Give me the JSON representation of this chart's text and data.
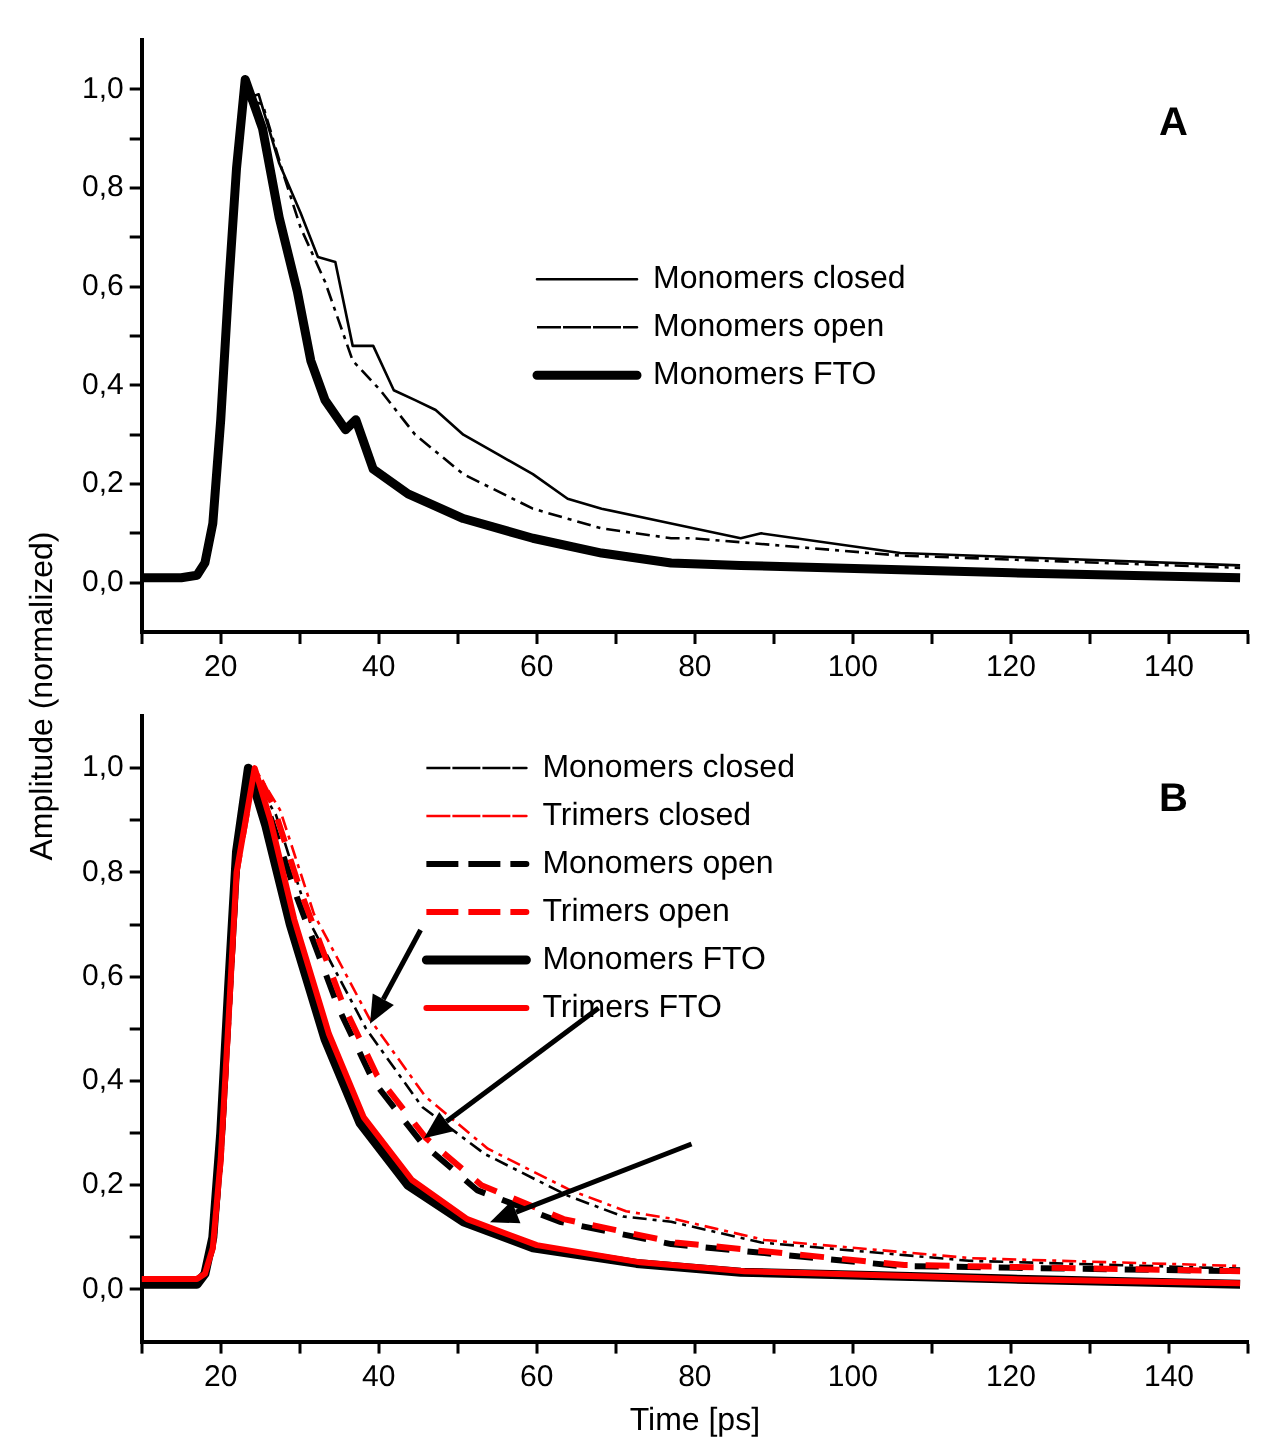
{
  "chart_data": [
    {
      "type": "line",
      "title": "A",
      "ylabel": "Amplitude (normalized)",
      "xlim": [
        10,
        150
      ],
      "ylim": [
        -0.1,
        1.1
      ],
      "xticks": [
        {
          "value": 10,
          "label": null
        },
        20,
        {
          "value": 30,
          "label": null
        },
        40,
        {
          "value": 50,
          "label": null
        },
        60,
        {
          "value": 70,
          "label": null
        },
        80,
        {
          "value": 90,
          "label": null
        },
        100,
        {
          "value": 110,
          "label": null
        },
        120,
        {
          "value": 130,
          "label": null
        },
        140,
        {
          "value": 150,
          "label": null
        }
      ],
      "yticks": [
        {
          "value": 0,
          "label": "0,0"
        },
        {
          "value": 0.1,
          "label": null
        },
        {
          "value": 0.2,
          "label": "0,2"
        },
        {
          "value": 0.3,
          "label": null
        },
        {
          "value": 0.4,
          "label": "0,4"
        },
        {
          "value": 0.5,
          "label": null
        },
        {
          "value": 0.6,
          "label": "0,6"
        },
        {
          "value": 0.7,
          "label": null
        },
        {
          "value": 0.8,
          "label": "0,8"
        },
        {
          "value": 0.9,
          "label": null
        },
        {
          "value": 1.0,
          "label": "1,0"
        }
      ],
      "legend": "right",
      "grid": false,
      "marker": "none",
      "series": [
        {
          "name": "Monomers closed",
          "color": "#000000",
          "line_style": "solid",
          "x": [
            10,
            15,
            17,
            18,
            19,
            20,
            21,
            22,
            23,
            24.8,
            27.4,
            30.1,
            32.3,
            34.5,
            36.7,
            39.3,
            41.9,
            44.6,
            47.2,
            50.7,
            55.1,
            59.5,
            63.9,
            68.2,
            77,
            85.8,
            88.4,
            106,
            123.5,
            149
          ],
          "values": [
            0.01,
            0.01,
            0.015,
            0.04,
            0.12,
            0.33,
            0.6,
            0.84,
            0.98,
            0.99,
            0.85,
            0.75,
            0.66,
            0.65,
            0.48,
            0.48,
            0.39,
            0.37,
            0.35,
            0.3,
            0.26,
            0.22,
            0.17,
            0.15,
            0.12,
            0.09,
            0.1,
            0.06,
            0.05,
            0.035
          ]
        },
        {
          "name": "Monomers open",
          "color": "#000000",
          "line_style": "dotted",
          "x": [
            10,
            15,
            17,
            18,
            19,
            20,
            21,
            22,
            23,
            25.3,
            27.9,
            30.1,
            33.2,
            36.7,
            40.2,
            44.6,
            50.7,
            59.5,
            68.2,
            77,
            79.7,
            106,
            149
          ],
          "values": [
            0.01,
            0.01,
            0.015,
            0.04,
            0.12,
            0.33,
            0.6,
            0.84,
            0.98,
            0.97,
            0.83,
            0.72,
            0.61,
            0.45,
            0.39,
            0.3,
            0.22,
            0.15,
            0.11,
            0.09,
            0.09,
            0.055,
            0.03
          ]
        },
        {
          "name": "Monomers FTO",
          "color": "#000000",
          "line_style": "solid",
          "x": [
            10,
            15,
            17,
            18,
            19,
            20,
            21,
            22,
            23.1,
            25.3,
            27.4,
            29.7,
            31.4,
            33.2,
            35.8,
            37.1,
            39.3,
            43.7,
            50.7,
            59.5,
            68.2,
            77,
            85.8,
            120,
            149
          ],
          "values": [
            0.01,
            0.01,
            0.015,
            0.04,
            0.12,
            0.33,
            0.6,
            0.84,
            1.02,
            0.92,
            0.74,
            0.59,
            0.45,
            0.37,
            0.31,
            0.33,
            0.23,
            0.18,
            0.13,
            0.09,
            0.06,
            0.04,
            0.035,
            0.02,
            0.01
          ]
        }
      ]
    },
    {
      "type": "line",
      "title": "B",
      "xlabel": "Time [ps]",
      "xlim": [
        10,
        150
      ],
      "ylim": [
        -0.1,
        1.1
      ],
      "xticks": [
        {
          "value": 10,
          "label": null
        },
        20,
        {
          "value": 30,
          "label": null
        },
        40,
        {
          "value": 50,
          "label": null
        },
        60,
        {
          "value": 70,
          "label": null
        },
        80,
        {
          "value": 90,
          "label": null
        },
        100,
        {
          "value": 110,
          "label": null
        },
        120,
        {
          "value": 130,
          "label": null
        },
        140,
        {
          "value": 150,
          "label": null
        }
      ],
      "yticks": [
        {
          "value": 0,
          "label": "0,0"
        },
        {
          "value": 0.1,
          "label": null
        },
        {
          "value": 0.2,
          "label": "0,2"
        },
        {
          "value": 0.3,
          "label": null
        },
        {
          "value": 0.4,
          "label": "0,4"
        },
        {
          "value": 0.5,
          "label": null
        },
        {
          "value": 0.6,
          "label": "0,6"
        },
        {
          "value": 0.7,
          "label": null
        },
        {
          "value": 0.8,
          "label": "0,8"
        },
        {
          "value": 0.9,
          "label": null
        },
        {
          "value": 1.0,
          "label": "1,0"
        }
      ],
      "legend": "top",
      "grid": false,
      "marker": "none",
      "series": [
        {
          "name": "Monomers closed",
          "color": "#000000",
          "line_style": "dotted",
          "x": [
            10,
            17,
            18,
            19,
            20,
            21,
            22,
            23.5,
            27,
            31.4,
            38.4,
            45.5,
            53.4,
            63.9,
            70.9,
            77,
            88.4,
            114.7,
            149
          ],
          "values": [
            0.01,
            0.01,
            0.03,
            0.1,
            0.3,
            0.58,
            0.84,
            1.0,
            0.91,
            0.7,
            0.5,
            0.35,
            0.26,
            0.18,
            0.14,
            0.13,
            0.09,
            0.055,
            0.04
          ]
        },
        {
          "name": "Trimers closed",
          "color": "#ff0000",
          "line_style": "dotted",
          "x": [
            10,
            17,
            18,
            19,
            20,
            21,
            22,
            24.3,
            27.5,
            31.8,
            38.8,
            45.9,
            53.8,
            64.3,
            71.3,
            77.4,
            88.8,
            115,
            149
          ],
          "values": [
            0.02,
            0.02,
            0.03,
            0.08,
            0.25,
            0.52,
            0.8,
            1.0,
            0.92,
            0.72,
            0.52,
            0.37,
            0.27,
            0.19,
            0.15,
            0.135,
            0.095,
            0.06,
            0.045
          ]
        },
        {
          "name": "Monomers open",
          "color": "#000000",
          "line_style": "dashed",
          "x": [
            10,
            17,
            18,
            19,
            20,
            21,
            22,
            23.5,
            26,
            29.7,
            34.9,
            39.3,
            45.5,
            52.5,
            62.9,
            77,
            106,
            149
          ],
          "values": [
            0.01,
            0.01,
            0.03,
            0.1,
            0.3,
            0.58,
            0.84,
            1.0,
            0.92,
            0.75,
            0.54,
            0.4,
            0.28,
            0.19,
            0.13,
            0.087,
            0.045,
            0.035
          ]
        },
        {
          "name": "Trimers open",
          "color": "#ff0000",
          "line_style": "dashed",
          "x": [
            10,
            17,
            18,
            19,
            20,
            21,
            22,
            24.3,
            26.6,
            30.2,
            35.4,
            39.8,
            46,
            53,
            63.4,
            77.5,
            106.5,
            149
          ],
          "values": [
            0.02,
            0.02,
            0.03,
            0.08,
            0.25,
            0.52,
            0.8,
            1.0,
            0.93,
            0.76,
            0.55,
            0.41,
            0.29,
            0.2,
            0.135,
            0.09,
            0.047,
            0.035
          ]
        },
        {
          "name": "Monomers FTO",
          "color": "#000000",
          "line_style": "solid",
          "x": [
            10,
            17,
            18,
            19,
            20,
            21,
            22,
            23.5,
            25.7,
            28.8,
            33.2,
            37.6,
            43.7,
            50.7,
            59.5,
            72.6,
            85.8,
            120,
            149
          ],
          "values": [
            0.01,
            0.01,
            0.03,
            0.1,
            0.3,
            0.58,
            0.84,
            1.0,
            0.89,
            0.7,
            0.48,
            0.32,
            0.2,
            0.13,
            0.08,
            0.05,
            0.033,
            0.02,
            0.01
          ]
        },
        {
          "name": "Trimers FTO",
          "color": "#ff0000",
          "line_style": "solid",
          "x": [
            10,
            17,
            18,
            19,
            20,
            21,
            22,
            24.3,
            26.3,
            29.3,
            33.7,
            38.1,
            44.2,
            51.2,
            60,
            73.1,
            86.3,
            120,
            149
          ],
          "values": [
            0.02,
            0.02,
            0.03,
            0.08,
            0.25,
            0.52,
            0.8,
            1.0,
            0.9,
            0.71,
            0.49,
            0.33,
            0.21,
            0.135,
            0.085,
            0.052,
            0.035,
            0.02,
            0.012
          ]
        }
      ]
    }
  ]
}
